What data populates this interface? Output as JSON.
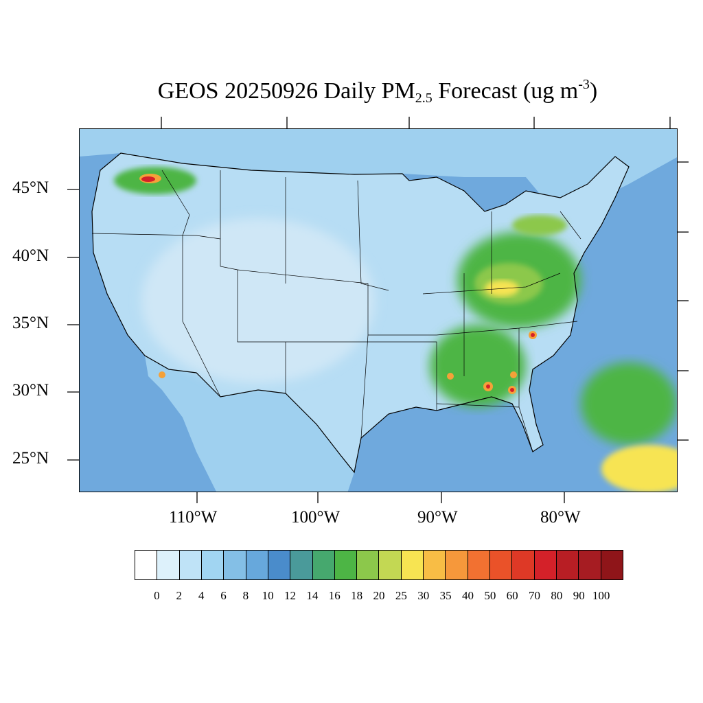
{
  "title": {
    "prefix": "GEOS 20250926 Daily PM",
    "subscript": "2.5",
    "middle": " Forecast (ug m",
    "superscript": "-3",
    "suffix": ")"
  },
  "map": {
    "region": "Contiguous United States",
    "lon_labels": [
      "110°W",
      "100°W",
      "90°W",
      "80°W"
    ],
    "lat_labels": [
      "45°N",
      "40°N",
      "35°N",
      "30°N",
      "25°N"
    ],
    "colors": {
      "ocean": "#6fa9dd",
      "land_low": "#cfe7f6",
      "land_mid": "#9fd0ef",
      "land_base": "#b7ddf4",
      "coast_deep": "#4d8fcc",
      "green": "#4db545",
      "light_green": "#8cc84b",
      "yellow": "#f7e452",
      "orange": "#f5a139",
      "red": "#d42129",
      "borders": "#000000"
    }
  },
  "colorbar": {
    "labels": [
      "0",
      "2",
      "4",
      "6",
      "8",
      "10",
      "12",
      "14",
      "16",
      "18",
      "20",
      "25",
      "30",
      "35",
      "40",
      "50",
      "60",
      "70",
      "80",
      "90",
      "100"
    ],
    "colors": [
      "#ffffff",
      "#ddf1fb",
      "#bfe3f7",
      "#a1d5f2",
      "#84bfe6",
      "#67a8dc",
      "#4a8ccb",
      "#4a9a9a",
      "#46a86e",
      "#4db545",
      "#8cc84b",
      "#c3d853",
      "#f7e452",
      "#f8bd45",
      "#f6983b",
      "#f27131",
      "#ea5229",
      "#de3926",
      "#d42129",
      "#b81e24",
      "#a61c22",
      "#8f1519"
    ]
  }
}
